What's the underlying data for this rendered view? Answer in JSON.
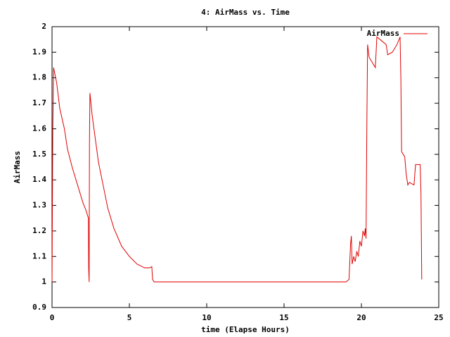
{
  "chart_data": {
    "type": "line",
    "title": "4: AirMass vs. Time",
    "x_label": "time (Elapse Hours)",
    "y_label": "AirMass",
    "xlim": [
      0,
      25
    ],
    "xticks": [
      0,
      5,
      10,
      15,
      20,
      25
    ],
    "ylim": [
      0.9,
      2
    ],
    "yticks": [
      0.9,
      1,
      1.1,
      1.2,
      1.3,
      1.4,
      1.5,
      1.6,
      1.7,
      1.8,
      1.9,
      2
    ],
    "legend": "top-right",
    "x": [
      0,
      0.05,
      0.1,
      0.3,
      0.5,
      0.8,
      1.0,
      1.3,
      1.6,
      2.0,
      2.2,
      2.35,
      2.37,
      2.4,
      2.42,
      2.45,
      2.6,
      2.8,
      3.0,
      3.3,
      3.6,
      4.0,
      4.5,
      5.0,
      5.5,
      6.0,
      6.3,
      6.45,
      6.5,
      6.6,
      19.0,
      19.2,
      19.3,
      19.35,
      19.4,
      19.5,
      19.6,
      19.7,
      19.8,
      19.9,
      20.0,
      20.1,
      20.2,
      20.25,
      20.3,
      20.35,
      20.4,
      20.5,
      20.7,
      20.9,
      21.0,
      21.2,
      21.4,
      21.6,
      21.7,
      22.0,
      22.3,
      22.5,
      22.55,
      22.6,
      22.8,
      22.9,
      23.0,
      23.1,
      23.4,
      23.5,
      23.8,
      23.85,
      23.9
    ],
    "series": [
      {
        "name": "AirMass",
        "color": "#e00000",
        "values": [
          1.0,
          1.6,
          1.84,
          1.78,
          1.68,
          1.6,
          1.52,
          1.45,
          1.39,
          1.31,
          1.28,
          1.25,
          1.05,
          1.0,
          1.55,
          1.74,
          1.65,
          1.56,
          1.47,
          1.38,
          1.29,
          1.21,
          1.14,
          1.1,
          1.07,
          1.055,
          1.055,
          1.06,
          1.01,
          1.0,
          1.0,
          1.01,
          1.15,
          1.18,
          1.07,
          1.1,
          1.08,
          1.12,
          1.1,
          1.16,
          1.14,
          1.2,
          1.18,
          1.21,
          1.17,
          1.6,
          1.93,
          1.88,
          1.86,
          1.84,
          1.96,
          1.95,
          1.94,
          1.93,
          1.89,
          1.9,
          1.93,
          1.96,
          1.8,
          1.51,
          1.49,
          1.42,
          1.38,
          1.39,
          1.38,
          1.46,
          1.46,
          1.35,
          1.01
        ]
      }
    ]
  }
}
